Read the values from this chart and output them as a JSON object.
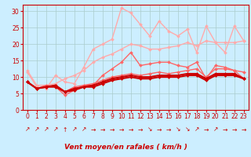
{
  "background_color": "#cceeff",
  "grid_color": "#aacccc",
  "xlabel": "Vent moyen/en rafales ( km/h )",
  "x_ticks": [
    0,
    1,
    2,
    3,
    4,
    5,
    6,
    7,
    8,
    9,
    10,
    11,
    12,
    13,
    14,
    15,
    16,
    17,
    18,
    19,
    20,
    21,
    22,
    23
  ],
  "ylim": [
    0,
    32
  ],
  "y_ticks": [
    0,
    5,
    10,
    15,
    20,
    25,
    30
  ],
  "series": [
    {
      "color": "#ffaaaa",
      "lw": 1.0,
      "marker": "D",
      "markersize": 2.0,
      "data_y": [
        11.5,
        7.0,
        6.5,
        10.5,
        8.5,
        8.0,
        13.0,
        18.5,
        20.0,
        21.5,
        31.0,
        29.5,
        26.0,
        22.5,
        27.0,
        24.0,
        22.5,
        24.5,
        17.5,
        25.5,
        20.5,
        17.5,
        25.5,
        21.0
      ]
    },
    {
      "color": "#ffaaaa",
      "lw": 1.0,
      "marker": "D",
      "markersize": 2.0,
      "data_y": [
        12.0,
        7.5,
        7.5,
        8.0,
        9.5,
        10.5,
        12.0,
        14.5,
        16.0,
        17.0,
        18.5,
        20.0,
        19.5,
        18.5,
        18.5,
        19.0,
        19.5,
        20.5,
        19.5,
        21.0,
        20.5,
        20.5,
        20.5,
        21.0
      ]
    },
    {
      "color": "#ff6666",
      "lw": 1.0,
      "marker": "D",
      "markersize": 2.0,
      "data_y": [
        8.5,
        6.5,
        7.5,
        7.0,
        4.5,
        6.0,
        7.5,
        7.5,
        10.5,
        12.5,
        14.5,
        17.5,
        13.5,
        14.0,
        14.5,
        14.5,
        13.5,
        13.0,
        14.5,
        9.5,
        13.5,
        13.0,
        12.0,
        11.5
      ]
    },
    {
      "color": "#ff6666",
      "lw": 1.0,
      "marker": "D",
      "markersize": 2.0,
      "data_y": [
        8.5,
        6.5,
        7.0,
        7.5,
        5.5,
        7.0,
        7.5,
        8.0,
        9.0,
        10.0,
        10.5,
        11.0,
        10.5,
        11.0,
        11.5,
        11.0,
        11.5,
        12.0,
        12.5,
        10.0,
        12.5,
        12.5,
        12.0,
        9.5
      ]
    },
    {
      "color": "#cc0000",
      "lw": 1.5,
      "marker": "D",
      "markersize": 2.0,
      "data_y": [
        8.5,
        6.5,
        7.0,
        7.5,
        5.5,
        6.5,
        7.0,
        7.5,
        8.5,
        9.5,
        10.0,
        10.5,
        10.0,
        10.0,
        10.5,
        10.5,
        10.5,
        11.0,
        11.0,
        9.5,
        11.0,
        11.0,
        11.0,
        9.5
      ]
    },
    {
      "color": "#cc0000",
      "lw": 1.5,
      "marker": "D",
      "markersize": 2.0,
      "data_y": [
        8.5,
        6.5,
        7.0,
        7.0,
        5.5,
        6.0,
        7.0,
        7.0,
        8.0,
        9.0,
        9.5,
        10.0,
        9.5,
        9.5,
        10.0,
        10.0,
        10.0,
        10.5,
        10.5,
        9.0,
        10.5,
        10.5,
        10.5,
        9.5
      ]
    }
  ],
  "arrows": [
    "↗",
    "↗",
    "↗",
    "↗",
    "↑",
    "↗",
    "↗",
    "→",
    "→",
    "→",
    "→",
    "→",
    "→",
    "↘",
    "→",
    "→",
    "↘",
    "↘",
    "↗",
    "→",
    "↗",
    "→",
    "→",
    "→"
  ],
  "xlabel_fontsize": 6.5,
  "tick_fontsize": 5.5,
  "arrow_fontsize": 5.5,
  "label_color": "#cc0000"
}
